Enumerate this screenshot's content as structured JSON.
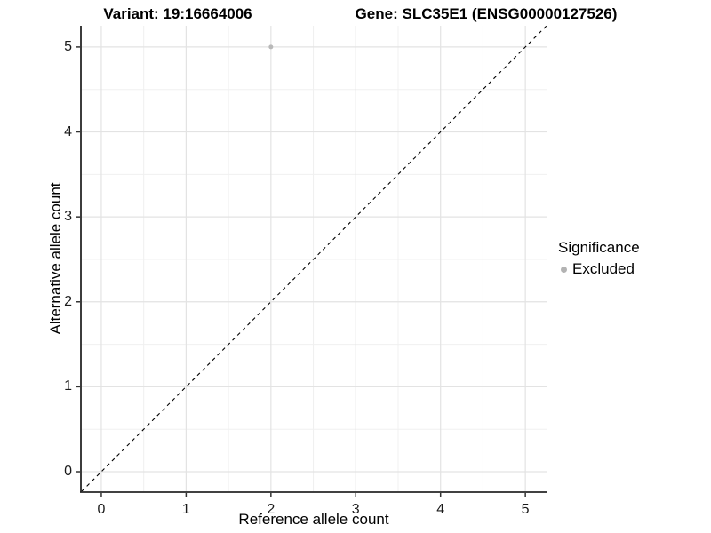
{
  "figure": {
    "title_variant": "Variant: 19:16664006",
    "title_gene": "Gene: SLC35E1 (ENSG00000127526)"
  },
  "chart_data": {
    "type": "scatter",
    "title": "Variant: 19:16664006   Gene: SLC35E1 (ENSG00000127526)",
    "xlabel": "Reference allele count",
    "ylabel": "Alternative allele count",
    "xlim": [
      -0.23,
      5.25
    ],
    "ylim": [
      -0.23,
      5.25
    ],
    "xticks": [
      0,
      1,
      2,
      3,
      4,
      5
    ],
    "yticks": [
      0,
      1,
      2,
      3,
      4,
      5
    ],
    "grid": "major+minor",
    "series": [
      {
        "name": "Excluded",
        "color": "#b9b9b9",
        "marker": "circle",
        "points": [
          {
            "x": 2,
            "y": 5
          }
        ]
      }
    ],
    "reference_line": {
      "type": "identity",
      "slope": 1,
      "intercept": 0,
      "style": "dashed",
      "color": "#000000"
    },
    "legend": {
      "title": "Significance",
      "position": "right",
      "items": [
        {
          "label": "Excluded",
          "color": "#b3b3b3",
          "marker": "circle"
        }
      ]
    },
    "style_colors": {
      "background": "#ffffff",
      "grid_major": "#e3e3e3",
      "grid_minor": "#f0f0f0",
      "axis_line": "#262626",
      "tick_mark": "#333333",
      "text": "#000000"
    }
  }
}
